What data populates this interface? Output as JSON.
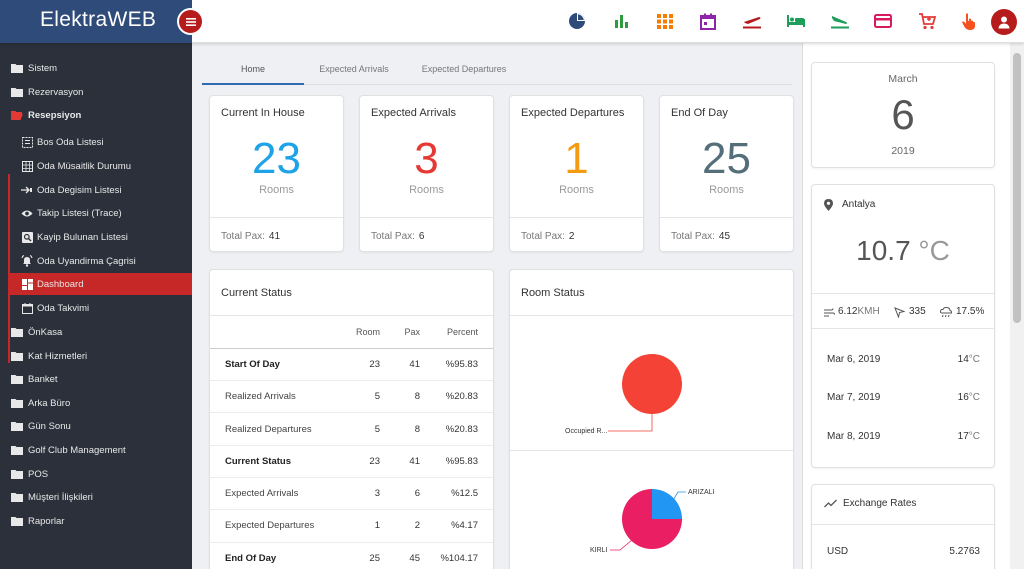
{
  "app": {
    "title": "ElektraWEB"
  },
  "sidebar": {
    "items": [
      {
        "label": "Sistem"
      },
      {
        "label": "Rezervasyon"
      },
      {
        "label": "Resepsiyon"
      },
      {
        "label": "ÖnKasa"
      },
      {
        "label": "Kat Hizmetleri"
      },
      {
        "label": "Banket"
      },
      {
        "label": "Arka Büro"
      },
      {
        "label": "Gün Sonu"
      },
      {
        "label": "Golf Club Management"
      },
      {
        "label": "POS"
      },
      {
        "label": "Müşteri İlişkileri"
      },
      {
        "label": "Raporlar"
      }
    ],
    "sub_items": [
      {
        "label": "Bos Oda Listesi"
      },
      {
        "label": "Oda Müsaitlik Durumu"
      },
      {
        "label": "Oda Degisim Listesi"
      },
      {
        "label": "Takip Listesi (Trace)"
      },
      {
        "label": "Kayip Bulunan Listesi"
      },
      {
        "label": "Oda Uyandirma Çagrisi"
      },
      {
        "label": "Dashboard"
      },
      {
        "label": "Oda Takvimi"
      }
    ]
  },
  "toolbar": {
    "icons": [
      "pie-chart-icon",
      "bar-chart-icon",
      "grid-icon",
      "calendar-icon",
      "departure-icon",
      "bed-icon",
      "arrival-icon",
      "credit-card-icon",
      "cart-icon",
      "touch-icon",
      "user-icon"
    ],
    "colors": [
      "#2f4b7a",
      "#2e9b3e",
      "#f57c00",
      "#8e24aa",
      "#b71c1c",
      "#1e9e5a",
      "#1e9e5a",
      "#d81b60",
      "#e53935",
      "#f4511e"
    ]
  },
  "tabs": [
    {
      "label": "Home"
    },
    {
      "label": "Expected Arrivals"
    },
    {
      "label": "Expected Departures"
    }
  ],
  "stats": [
    {
      "title": "Current In House",
      "value": "23",
      "unit": "Rooms",
      "pax_label": "Total Pax:",
      "pax": "41",
      "color": "#1fa3e8"
    },
    {
      "title": "Expected Arrivals",
      "value": "3",
      "unit": "Rooms",
      "pax_label": "Total Pax:",
      "pax": "6",
      "color": "#e53935"
    },
    {
      "title": "Expected Departures",
      "value": "1",
      "unit": "Rooms",
      "pax_label": "Total Pax:",
      "pax": "2",
      "color": "#f39c12"
    },
    {
      "title": "End Of Day",
      "value": "25",
      "unit": "Rooms",
      "pax_label": "Total Pax:",
      "pax": "45",
      "color": "#546e7a"
    }
  ],
  "current_status": {
    "title": "Current Status",
    "headers": {
      "room": "Room",
      "pax": "Pax",
      "percent": "Percent"
    },
    "rows": [
      {
        "label": "Start Of Day",
        "room": "23",
        "pax": "41",
        "percent": "%95.83",
        "bold": true
      },
      {
        "label": "Realized Arrivals",
        "room": "5",
        "pax": "8",
        "percent": "%20.83",
        "bold": false
      },
      {
        "label": "Realized Departures",
        "room": "5",
        "pax": "8",
        "percent": "%20.83",
        "bold": false
      },
      {
        "label": "Current Status",
        "room": "23",
        "pax": "41",
        "percent": "%95.83",
        "bold": true
      },
      {
        "label": "Expected Arrivals",
        "room": "3",
        "pax": "6",
        "percent": "%12.5",
        "bold": false
      },
      {
        "label": "Expected Departures",
        "room": "1",
        "pax": "2",
        "percent": "%4.17",
        "bold": false
      },
      {
        "label": "End Of Day",
        "room": "25",
        "pax": "45",
        "percent": "%104.17",
        "bold": true
      }
    ]
  },
  "room_status": {
    "title": "Room Status",
    "pie1": {
      "label": "Occupied R...",
      "color": "#f44336"
    },
    "pie2": {
      "label_a": "ARIZALI",
      "label_b": "KIRLI",
      "color_a": "#2196f3",
      "color_b": "#e91e63"
    }
  },
  "chart_data": [
    {
      "type": "pie",
      "slices": [
        {
          "label": "Occupied R...",
          "value": 100
        }
      ]
    },
    {
      "type": "pie",
      "slices": [
        {
          "label": "KIRLI",
          "value": 75
        },
        {
          "label": "ARIZALI",
          "value": 25
        }
      ]
    }
  ],
  "date": {
    "month": "March",
    "day": "6",
    "year": "2019"
  },
  "weather": {
    "city": "Antalya",
    "temperature": "10.7",
    "unit": "°C",
    "wind_value": "6.12",
    "wind_unit": "KMH",
    "direction": "335",
    "humidity": "17.5%",
    "forecast": [
      {
        "date": "Mar 6, 2019",
        "temp": "14",
        "unit": "°C"
      },
      {
        "date": "Mar 7, 2019",
        "temp": "16",
        "unit": "°C"
      },
      {
        "date": "Mar 8, 2019",
        "temp": "17",
        "unit": "°C"
      }
    ]
  },
  "exchange": {
    "title": "Exchange Rates",
    "rates": [
      {
        "code": "USD",
        "value": "5.2763"
      }
    ]
  }
}
